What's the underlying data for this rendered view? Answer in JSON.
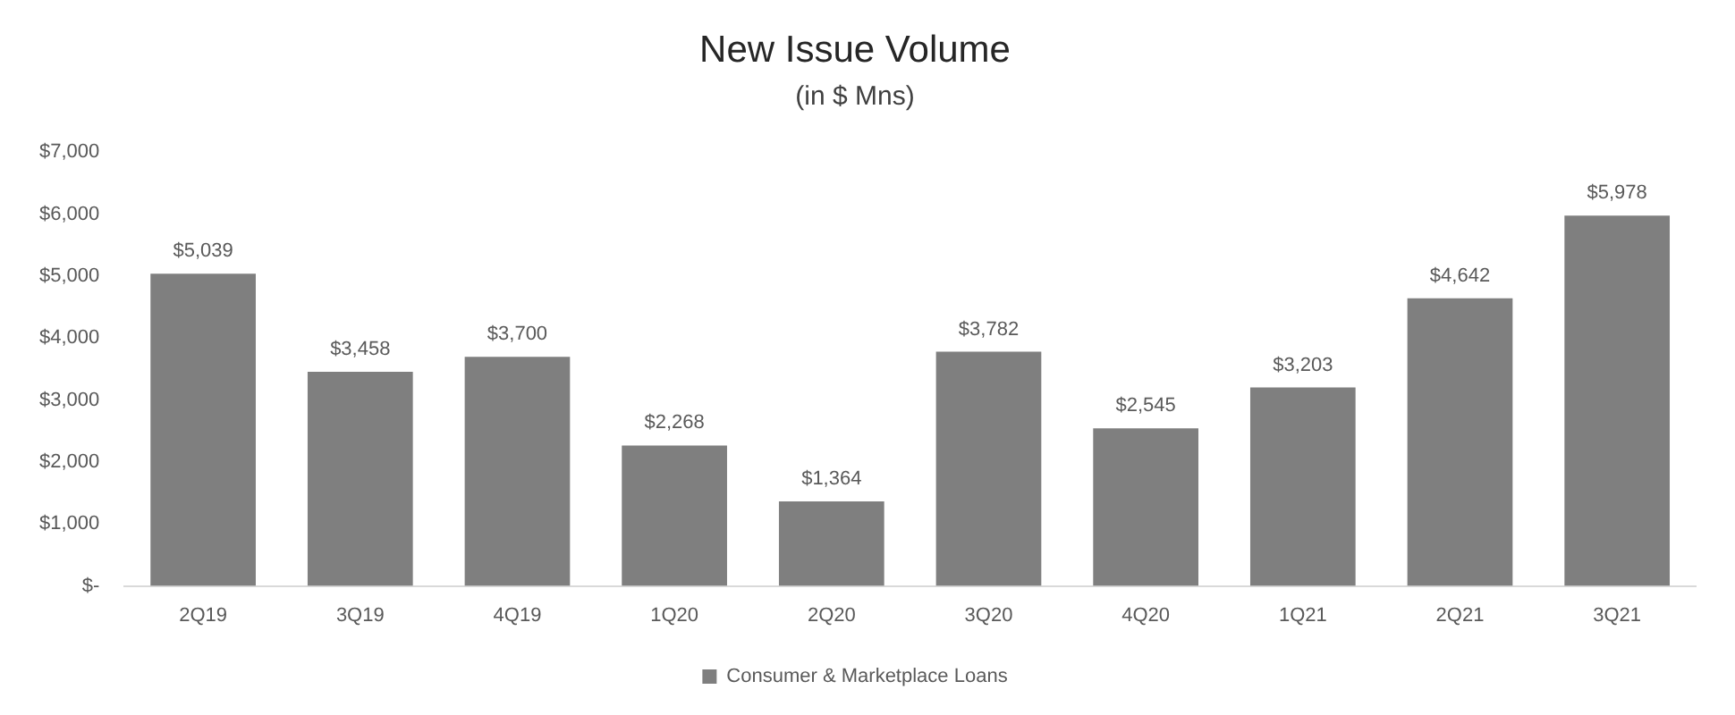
{
  "chart_data": {
    "type": "bar",
    "title": "New Issue Volume",
    "subtitle": "(in $ Mns)",
    "categories": [
      "2Q19",
      "3Q19",
      "4Q19",
      "1Q20",
      "2Q20",
      "3Q20",
      "4Q20",
      "1Q21",
      "2Q21",
      "3Q21"
    ],
    "series": [
      {
        "name": "Consumer & Marketplace Loans",
        "color": "#7f7f7f",
        "values": [
          5039,
          3458,
          3700,
          2268,
          1364,
          3782,
          2545,
          3203,
          4642,
          5978
        ],
        "value_labels": [
          "$5,039",
          "$3,458",
          "$3,700",
          "$2,268",
          "$1,364",
          "$3,782",
          "$2,545",
          "$3,203",
          "$4,642",
          "$5,978"
        ]
      }
    ],
    "ylim": [
      0,
      7000
    ],
    "yticks": [
      {
        "value": 0,
        "label": "$-"
      },
      {
        "value": 1000,
        "label": "$1,000"
      },
      {
        "value": 2000,
        "label": "$2,000"
      },
      {
        "value": 3000,
        "label": "$3,000"
      },
      {
        "value": 4000,
        "label": "$4,000"
      },
      {
        "value": 5000,
        "label": "$5,000"
      },
      {
        "value": 6000,
        "label": "$6,000"
      },
      {
        "value": 7000,
        "label": "$7,000"
      }
    ],
    "grid": false,
    "legend": "bottom"
  }
}
